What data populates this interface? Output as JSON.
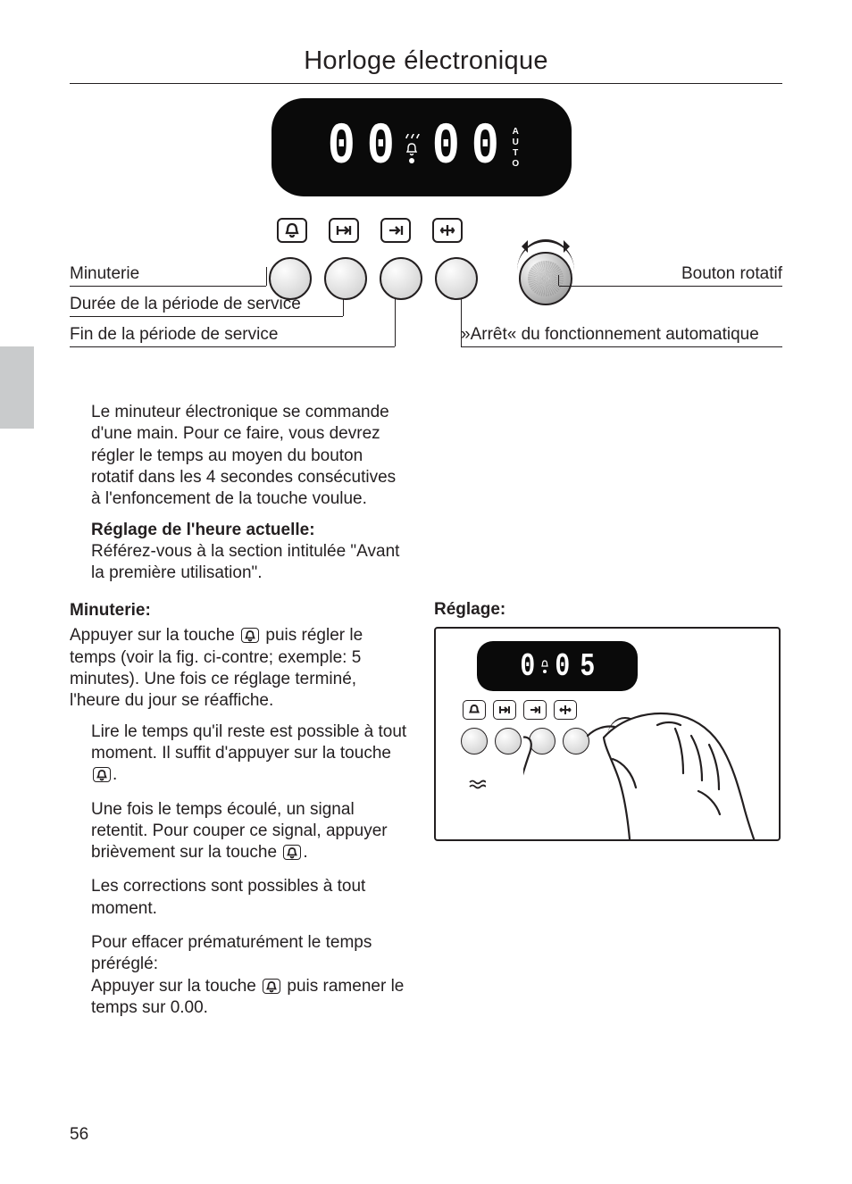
{
  "page_number": "56",
  "title": "Horloge électronique",
  "main_display": {
    "digits": [
      "0",
      "0",
      "0",
      "0"
    ],
    "auto": [
      "A",
      "U",
      "T",
      "O"
    ]
  },
  "labels": {
    "minuterie": "Minuterie",
    "duree": "Durée de la période de service",
    "fin": "Fin de la période de service",
    "rotatif": "Bouton rotatif",
    "arret": "»Arrêt« du fonctionnement automatique"
  },
  "intro": {
    "p1": "Le minuteur électronique se commande d'une main. Pour ce faire, vous devrez régler le temps au moyen du bouton rotatif dans les 4 secondes consécutives à l'enfoncement de la touche voulue.",
    "h1": "Réglage de l'heure actuelle:",
    "p2": "Référez-vous à la section intitulée \"Avant la première utilisation\"."
  },
  "left_col": {
    "heading": "Minuterie:",
    "p_before": "Appuyer sur la touche ",
    "p_after": " puis régler le temps (voir la fig. ci-contre; exemple: 5 minutes). Une fois ce réglage terminé, l'heure du jour se réaffiche.",
    "items": [
      {
        "before": "Lire le temps qu'il reste est possible à tout moment. Il suffit d'appuyer sur la touche  ",
        "after": "."
      },
      {
        "before": "Une fois le temps écoulé, un signal retentit. Pour couper ce signal, appuyer brièvement sur la touche  ",
        "after": "."
      },
      {
        "before": "Les corrections sont possibles à tout moment.",
        "after": ""
      },
      {
        "before": "Pour effacer prématurément le temps préréglé:\nAppuyer sur la touche  ",
        "after": "  puis ramener le temps sur 0.00."
      }
    ]
  },
  "right_col": {
    "heading": "Réglage:",
    "display_digits": [
      "0",
      "0",
      "5"
    ]
  }
}
